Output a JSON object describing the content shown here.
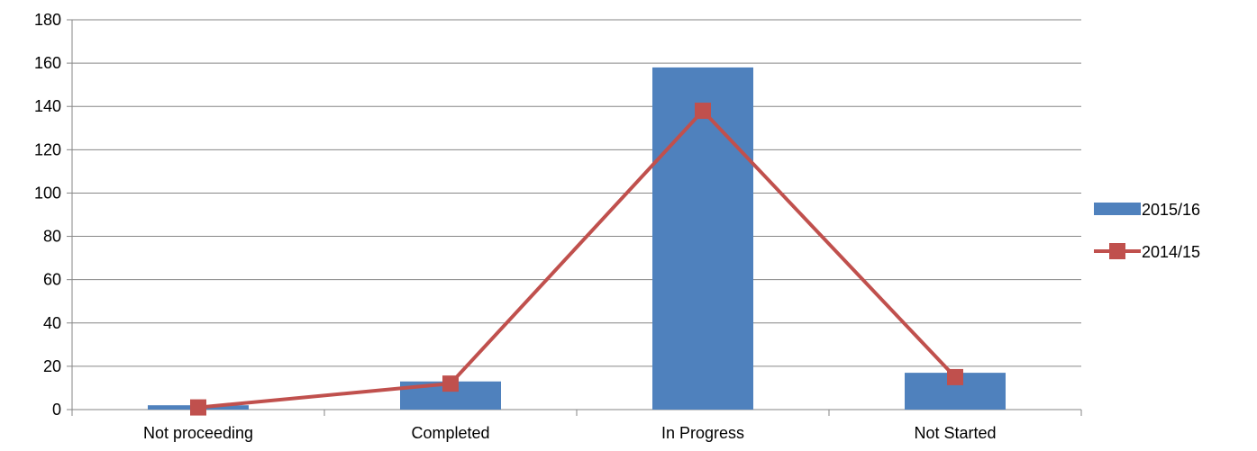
{
  "chart_data": {
    "type": "bar",
    "title": "",
    "xlabel": "",
    "ylabel": "",
    "categories": [
      "Not proceeding",
      "Completed",
      "In Progress",
      "Not Started"
    ],
    "ylim": [
      0,
      180
    ],
    "yticks": [
      0,
      20,
      40,
      60,
      80,
      100,
      120,
      140,
      160,
      180
    ],
    "grid": true,
    "legend_position": "right",
    "series": [
      {
        "name": "2015/16",
        "type": "bar",
        "color": "#4F81BD",
        "values": [
          2,
          13,
          158,
          17
        ]
      },
      {
        "name": "2014/15",
        "type": "line",
        "marker": "square",
        "color": "#C0504D",
        "values": [
          1,
          12,
          138,
          15
        ]
      }
    ]
  }
}
